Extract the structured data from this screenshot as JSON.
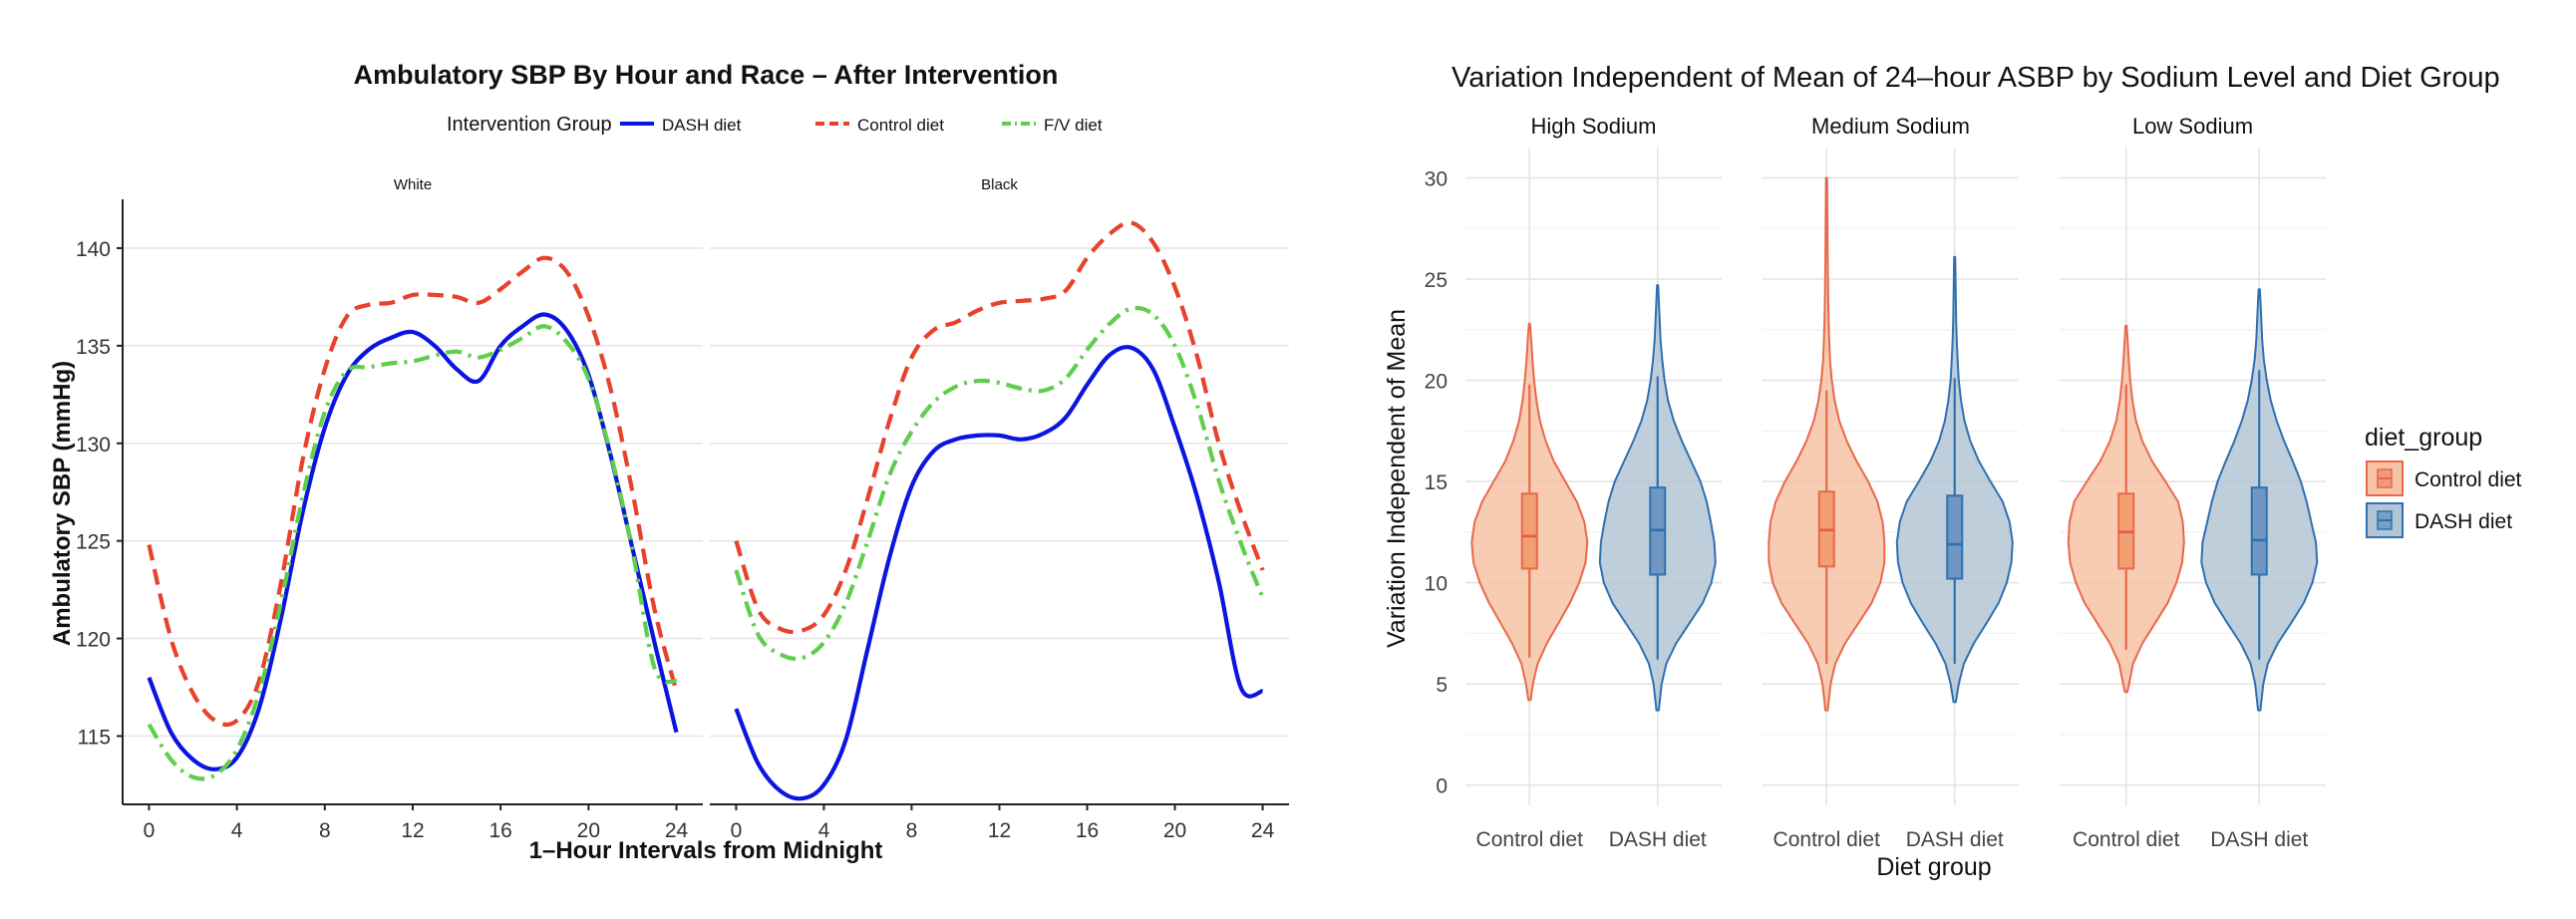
{
  "chart_data": [
    {
      "type": "line",
      "title": "Ambulatory SBP By Hour and Race – After Intervention",
      "xlabel": "1–Hour Intervals from Midnight",
      "ylabel": "Ambulatory SBP (mmHg)",
      "legend": {
        "title": "Intervention Group",
        "placement": "top",
        "entries": [
          {
            "label": "DASH diet",
            "color": "#0b15e0",
            "dash": "solid"
          },
          {
            "label": "Control diet",
            "color": "#e8412c",
            "dash": "dashed"
          },
          {
            "label": "F/V diet",
            "color": "#5fce4c",
            "dash": "dashdot"
          }
        ]
      },
      "xlim": [
        -1.2,
        25.2
      ],
      "ylim": [
        111.5,
        142.5
      ],
      "xticks": [
        0,
        4,
        8,
        12,
        16,
        20,
        24
      ],
      "yticks": [
        115,
        120,
        125,
        130,
        135,
        140
      ],
      "grid": "horizontal",
      "panels": [
        {
          "label": "White",
          "x": [
            0,
            1,
            2,
            3,
            4,
            5,
            6,
            7,
            8,
            9,
            10,
            11,
            12,
            13,
            14,
            15,
            16,
            17,
            18,
            19,
            20,
            21,
            22,
            23,
            24
          ],
          "series": [
            {
              "name": "DASH diet",
              "values": [
                118.0,
                115.2,
                113.8,
                113.3,
                113.9,
                116.4,
                121.0,
                126.5,
                130.8,
                133.5,
                134.8,
                135.4,
                135.7,
                135.0,
                133.8,
                133.2,
                135.0,
                136.0,
                136.6,
                135.8,
                133.5,
                129.4,
                124.6,
                119.8,
                115.2
              ]
            },
            {
              "name": "Control diet",
              "values": [
                124.8,
                120.0,
                117.2,
                115.8,
                115.8,
                117.8,
                122.8,
                129.2,
                133.8,
                136.5,
                137.1,
                137.2,
                137.6,
                137.6,
                137.5,
                137.2,
                137.9,
                138.8,
                139.5,
                138.8,
                136.5,
                132.8,
                127.5,
                121.5,
                117.3
              ]
            },
            {
              "name": "F/V diet",
              "values": [
                115.6,
                113.8,
                112.9,
                113.0,
                114.3,
                117.2,
                121.8,
                127.3,
                131.6,
                133.7,
                133.9,
                134.1,
                134.2,
                134.5,
                134.7,
                134.4,
                134.8,
                135.4,
                136.0,
                135.2,
                133.3,
                129.5,
                124.5,
                118.5,
                117.8
              ]
            }
          ]
        },
        {
          "label": "Black",
          "x": [
            0,
            1,
            2,
            3,
            4,
            5,
            6,
            7,
            8,
            9,
            10,
            11,
            12,
            13,
            14,
            15,
            16,
            17,
            18,
            19,
            20,
            21,
            22,
            23,
            24
          ],
          "series": [
            {
              "name": "DASH diet",
              "values": [
                116.4,
                113.6,
                112.2,
                111.8,
                112.5,
                114.8,
                119.5,
                124.2,
                127.8,
                129.6,
                130.2,
                130.4,
                130.4,
                130.2,
                130.5,
                131.3,
                133.0,
                134.5,
                134.9,
                133.8,
                130.8,
                127.3,
                122.9,
                117.5,
                117.3
              ]
            },
            {
              "name": "Control diet",
              "values": [
                125.0,
                121.5,
                120.5,
                120.4,
                121.2,
                123.5,
                127.2,
                131.2,
                134.4,
                135.8,
                136.2,
                136.8,
                137.2,
                137.3,
                137.4,
                137.8,
                139.5,
                140.7,
                141.3,
                140.3,
                138.0,
                134.5,
                130.0,
                126.5,
                123.5
              ]
            },
            {
              "name": "F/V diet",
              "values": [
                123.5,
                120.2,
                119.2,
                119.0,
                119.8,
                121.8,
                125.0,
                128.4,
                130.6,
                132.1,
                132.9,
                133.2,
                133.1,
                132.8,
                132.7,
                133.3,
                134.8,
                136.1,
                136.9,
                136.6,
                135.0,
                132.0,
                128.1,
                124.9,
                122.1
              ]
            }
          ]
        }
      ]
    },
    {
      "type": "violin",
      "title": "Variation Independent of Mean of 24–hour ASBP by Sodium Level and Diet Group",
      "xlabel": "Diet group",
      "ylabel": "Variation Independent of Mean",
      "ylim": [
        -1,
        31.5
      ],
      "yticks": [
        0,
        5,
        10,
        15,
        20,
        25,
        30
      ],
      "grid": "major-and-minor",
      "legend": {
        "title": "diet_group",
        "placement": "right",
        "entries": [
          {
            "label": "Control diet",
            "fill": "#f6c3a5",
            "stroke": "#e8684a"
          },
          {
            "label": "DASH diet",
            "fill": "#b3c5d4",
            "stroke": "#2f70b1"
          }
        ]
      },
      "panels": [
        {
          "label": "High Sodium",
          "groups": [
            {
              "category": "Control diet",
              "min": 4.2,
              "max": 22.8,
              "q1": 10.7,
              "median": 12.3,
              "q3": 14.4,
              "whisker_low": 6.3,
              "whisker_high": 19.8,
              "density": [
                [
                  4.2,
                  0.02
                ],
                [
                  5,
                  0.06
                ],
                [
                  6,
                  0.14
                ],
                [
                  7,
                  0.3
                ],
                [
                  8,
                  0.5
                ],
                [
                  9,
                  0.7
                ],
                [
                  10,
                  0.86
                ],
                [
                  11,
                  0.97
                ],
                [
                  12,
                  1.0
                ],
                [
                  13,
                  0.95
                ],
                [
                  14,
                  0.82
                ],
                [
                  15,
                  0.62
                ],
                [
                  16,
                  0.42
                ],
                [
                  17,
                  0.28
                ],
                [
                  18,
                  0.18
                ],
                [
                  19,
                  0.12
                ],
                [
                  20,
                  0.08
                ],
                [
                  21,
                  0.05
                ],
                [
                  22,
                  0.03
                ],
                [
                  22.8,
                  0.01
                ]
              ]
            },
            {
              "category": "DASH diet",
              "min": 3.7,
              "max": 24.7,
              "q1": 10.4,
              "median": 12.6,
              "q3": 14.7,
              "whisker_low": 6.2,
              "whisker_high": 20.2,
              "density": [
                [
                  3.7,
                  0.02
                ],
                [
                  5,
                  0.07
                ],
                [
                  6,
                  0.15
                ],
                [
                  7,
                  0.32
                ],
                [
                  8,
                  0.55
                ],
                [
                  9,
                  0.78
                ],
                [
                  10,
                  0.93
                ],
                [
                  11,
                  1.0
                ],
                [
                  12,
                  0.98
                ],
                [
                  13,
                  0.92
                ],
                [
                  14,
                  0.85
                ],
                [
                  15,
                  0.74
                ],
                [
                  16,
                  0.58
                ],
                [
                  17,
                  0.42
                ],
                [
                  18,
                  0.28
                ],
                [
                  19,
                  0.18
                ],
                [
                  20,
                  0.12
                ],
                [
                  21,
                  0.08
                ],
                [
                  22,
                  0.05
                ],
                [
                  23,
                  0.035
                ],
                [
                  24,
                  0.02
                ],
                [
                  24.7,
                  0.01
                ]
              ]
            }
          ]
        },
        {
          "label": "Medium Sodium",
          "groups": [
            {
              "category": "Control diet",
              "min": 3.7,
              "max": 30.0,
              "q1": 10.8,
              "median": 12.6,
              "q3": 14.5,
              "whisker_low": 6.0,
              "whisker_high": 19.5,
              "density": [
                [
                  3.7,
                  0.02
                ],
                [
                  5,
                  0.07
                ],
                [
                  6,
                  0.15
                ],
                [
                  7,
                  0.32
                ],
                [
                  8,
                  0.55
                ],
                [
                  9,
                  0.78
                ],
                [
                  10,
                  0.93
                ],
                [
                  11,
                  1.0
                ],
                [
                  12,
                  1.0
                ],
                [
                  13,
                  0.97
                ],
                [
                  14,
                  0.88
                ],
                [
                  15,
                  0.72
                ],
                [
                  16,
                  0.52
                ],
                [
                  17,
                  0.35
                ],
                [
                  18,
                  0.22
                ],
                [
                  19,
                  0.14
                ],
                [
                  20,
                  0.09
                ],
                [
                  21,
                  0.06
                ],
                [
                  22,
                  0.045
                ],
                [
                  23,
                  0.035
                ],
                [
                  24,
                  0.028
                ],
                [
                  26,
                  0.02
                ],
                [
                  28,
                  0.015
                ],
                [
                  30,
                  0.01
                ]
              ]
            },
            {
              "category": "DASH diet",
              "min": 4.1,
              "max": 26.1,
              "q1": 10.2,
              "median": 11.9,
              "q3": 14.3,
              "whisker_low": 6.0,
              "whisker_high": 20.1,
              "density": [
                [
                  4.1,
                  0.02
                ],
                [
                  5,
                  0.07
                ],
                [
                  6,
                  0.16
                ],
                [
                  7,
                  0.33
                ],
                [
                  8,
                  0.55
                ],
                [
                  9,
                  0.76
                ],
                [
                  10,
                  0.9
                ],
                [
                  11,
                  0.98
                ],
                [
                  12,
                  1.0
                ],
                [
                  13,
                  0.95
                ],
                [
                  14,
                  0.83
                ],
                [
                  15,
                  0.62
                ],
                [
                  16,
                  0.42
                ],
                [
                  17,
                  0.27
                ],
                [
                  18,
                  0.17
                ],
                [
                  19,
                  0.11
                ],
                [
                  20,
                  0.07
                ],
                [
                  21,
                  0.05
                ],
                [
                  22,
                  0.035
                ],
                [
                  23,
                  0.025
                ],
                [
                  24,
                  0.02
                ],
                [
                  25,
                  0.015
                ],
                [
                  26.1,
                  0.01
                ]
              ]
            }
          ]
        },
        {
          "label": "Low Sodium",
          "groups": [
            {
              "category": "Control diet",
              "min": 4.6,
              "max": 22.7,
              "q1": 10.7,
              "median": 12.5,
              "q3": 14.4,
              "whisker_low": 6.7,
              "whisker_high": 19.8,
              "density": [
                [
                  4.6,
                  0.02
                ],
                [
                  5,
                  0.05
                ],
                [
                  6,
                  0.12
                ],
                [
                  7,
                  0.28
                ],
                [
                  8,
                  0.5
                ],
                [
                  9,
                  0.72
                ],
                [
                  10,
                  0.87
                ],
                [
                  11,
                  0.97
                ],
                [
                  12,
                  1.0
                ],
                [
                  13,
                  0.98
                ],
                [
                  14,
                  0.9
                ],
                [
                  15,
                  0.68
                ],
                [
                  16,
                  0.45
                ],
                [
                  17,
                  0.28
                ],
                [
                  18,
                  0.17
                ],
                [
                  19,
                  0.11
                ],
                [
                  20,
                  0.07
                ],
                [
                  21,
                  0.045
                ],
                [
                  22,
                  0.025
                ],
                [
                  22.7,
                  0.01
                ]
              ]
            },
            {
              "category": "DASH diet",
              "min": 3.7,
              "max": 24.5,
              "q1": 10.4,
              "median": 12.1,
              "q3": 14.7,
              "whisker_low": 6.2,
              "whisker_high": 20.5,
              "density": [
                [
                  3.7,
                  0.02
                ],
                [
                  5,
                  0.07
                ],
                [
                  6,
                  0.15
                ],
                [
                  7,
                  0.32
                ],
                [
                  8,
                  0.55
                ],
                [
                  9,
                  0.77
                ],
                [
                  10,
                  0.92
                ],
                [
                  11,
                  1.0
                ],
                [
                  12,
                  0.98
                ],
                [
                  13,
                  0.9
                ],
                [
                  14,
                  0.82
                ],
                [
                  15,
                  0.72
                ],
                [
                  16,
                  0.58
                ],
                [
                  17,
                  0.43
                ],
                [
                  18,
                  0.3
                ],
                [
                  19,
                  0.2
                ],
                [
                  20,
                  0.13
                ],
                [
                  21,
                  0.08
                ],
                [
                  22,
                  0.05
                ],
                [
                  23,
                  0.035
                ],
                [
                  24,
                  0.02
                ],
                [
                  24.5,
                  0.01
                ]
              ]
            }
          ]
        }
      ]
    }
  ]
}
